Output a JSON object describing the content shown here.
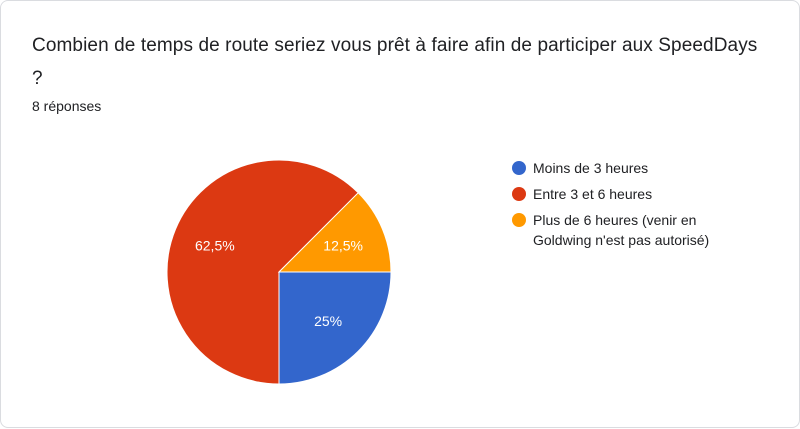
{
  "question": "Combien de temps de route seriez vous prêt à faire afin de participer aux SpeedDays ?",
  "response_count": "8 réponses",
  "chart_data": {
    "type": "pie",
    "title": "Combien de temps de route seriez vous prêt à faire afin de participer aux SpeedDays ?",
    "categories": [
      "Moins de 3 heures",
      "Entre 3 et 6 heures",
      "Plus de 6 heures (venir en Goldwing n'est pas autorisé)"
    ],
    "values": [
      25,
      62.5,
      12.5
    ],
    "labels": [
      "25%",
      "62,5%",
      "12,5%"
    ],
    "colors": [
      "#3366cc",
      "#dc3912",
      "#ff9900"
    ],
    "legend_position": "right"
  }
}
